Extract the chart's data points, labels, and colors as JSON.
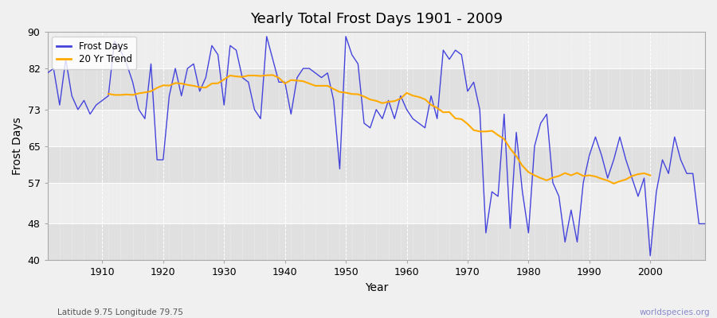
{
  "title": "Yearly Total Frost Days 1901 - 2009",
  "xlabel": "Year",
  "ylabel": "Frost Days",
  "subtitle": "Latitude 9.75 Longitude 79.75",
  "watermark": "worldspecies.org",
  "bg_color": "#f0f0f0",
  "plot_bg_color": "#ffffff",
  "band_color_dark": "#e0e0e0",
  "band_color_light": "#eeeeee",
  "line_color": "#4444dd",
  "trend_color": "#ffaa00",
  "ylim": [
    40,
    90
  ],
  "yticks": [
    40,
    48,
    57,
    65,
    73,
    82,
    90
  ],
  "frost_days": {
    "1901": 81,
    "1902": 82,
    "1903": 74,
    "1904": 84,
    "1905": 76,
    "1906": 73,
    "1907": 75,
    "1908": 72,
    "1909": 74,
    "1910": 75,
    "1911": 76,
    "1912": 88,
    "1913": 86,
    "1914": 83,
    "1915": 79,
    "1916": 73,
    "1917": 71,
    "1918": 83,
    "1919": 62,
    "1920": 62,
    "1921": 76,
    "1922": 82,
    "1923": 76,
    "1924": 82,
    "1925": 83,
    "1926": 77,
    "1927": 80,
    "1928": 87,
    "1929": 85,
    "1930": 74,
    "1931": 87,
    "1932": 86,
    "1933": 80,
    "1934": 79,
    "1935": 73,
    "1936": 71,
    "1937": 89,
    "1938": 84,
    "1939": 79,
    "1940": 79,
    "1941": 72,
    "1942": 80,
    "1943": 82,
    "1944": 82,
    "1945": 81,
    "1946": 80,
    "1947": 81,
    "1948": 75,
    "1949": 60,
    "1950": 89,
    "1951": 85,
    "1952": 83,
    "1953": 70,
    "1954": 69,
    "1955": 73,
    "1956": 71,
    "1957": 75,
    "1958": 71,
    "1959": 76,
    "1960": 73,
    "1961": 71,
    "1962": 70,
    "1963": 69,
    "1964": 76,
    "1965": 71,
    "1966": 86,
    "1967": 84,
    "1968": 86,
    "1969": 85,
    "1970": 77,
    "1971": 79,
    "1972": 73,
    "1973": 46,
    "1974": 55,
    "1975": 54,
    "1976": 72,
    "1977": 47,
    "1978": 68,
    "1979": 55,
    "1980": 46,
    "1981": 65,
    "1982": 70,
    "1983": 72,
    "1984": 57,
    "1985": 54,
    "1986": 44,
    "1987": 51,
    "1988": 44,
    "1989": 57,
    "1990": 63,
    "1991": 67,
    "1992": 63,
    "1993": 58,
    "1994": 62,
    "1995": 67,
    "1996": 62,
    "1997": 58,
    "1998": 54,
    "1999": 58,
    "2000": 41,
    "2001": 55,
    "2002": 62,
    "2003": 59,
    "2004": 67,
    "2005": 62,
    "2006": 59,
    "2007": 59,
    "2008": 48,
    "2009": 48
  }
}
